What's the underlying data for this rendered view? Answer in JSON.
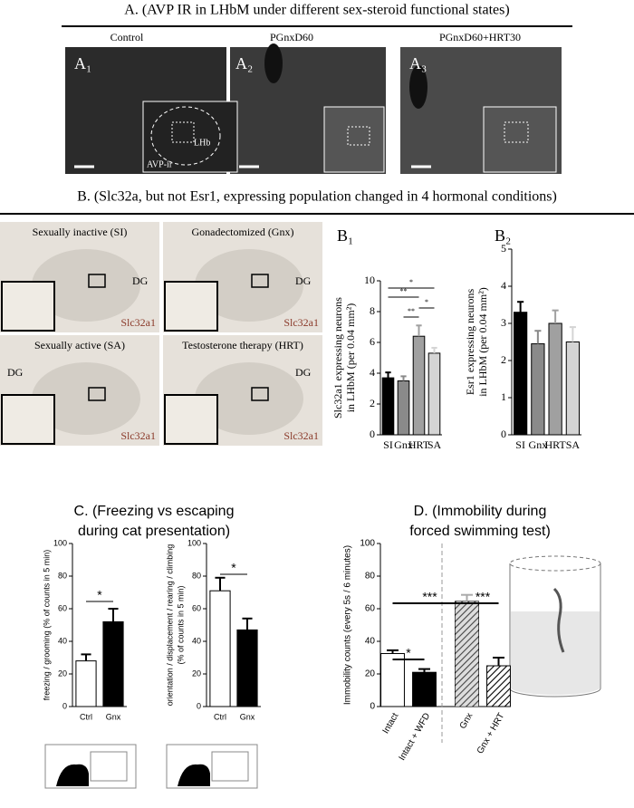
{
  "panel_a": {
    "heading": "A. (AVP IR in LHbM under different sex-steroid functional states)",
    "images": [
      {
        "caption": "Control",
        "label": "A₁"
      },
      {
        "caption": "PGnxD60",
        "label": "A₂"
      },
      {
        "caption": "PGnxD60+HRT30",
        "label": "A₃"
      }
    ],
    "inset_labels": [
      "AVP-ir",
      "LHb"
    ]
  },
  "panel_b": {
    "heading": "B. (Slc32a, but not Esr1, expressing population changed in 4 hormonal conditions)",
    "images": [
      {
        "label": "Sexually inactive (SI)"
      },
      {
        "label": "Gonadectomized (Gnx)"
      },
      {
        "label": "Sexually active (SA)"
      },
      {
        "label": "Testosterone therapy (HRT)"
      }
    ],
    "region": "DG",
    "gene": "Slc32a1"
  },
  "panel_c": {
    "heading": [
      "C. (Freezing vs escaping",
      "during cat presentation)"
    ]
  },
  "panel_d": {
    "heading": [
      "D. (Immobility during",
      "forced swimming test)"
    ]
  },
  "chart_data": [
    {
      "type": "bar",
      "label": "B₁",
      "ylabel": [
        "Slc32a1 expressing neurons",
        "in LHbM  (per 0.04 mm²)"
      ],
      "categories": [
        "SI",
        "Gnx",
        "HRT",
        "SA"
      ],
      "values": [
        3.7,
        3.5,
        6.4,
        5.3
      ],
      "errors": [
        0.35,
        0.3,
        0.7,
        0.35
      ],
      "colors": [
        "#000000",
        "#8a8a8a",
        "#a0a0a0",
        "#d4d4d4"
      ],
      "ylim": [
        0,
        10
      ],
      "yticks": [
        0,
        2,
        4,
        6,
        8,
        10
      ],
      "annotations": [
        "*",
        "**",
        "*",
        "**"
      ]
    },
    {
      "type": "bar",
      "label": "B₂",
      "ylabel": [
        "Esr1 expressing neurons",
        "in LHbM  (per 0.04 mm²)"
      ],
      "categories": [
        "SI",
        "Gnx",
        "HRT",
        "SA"
      ],
      "values": [
        3.3,
        2.45,
        3.0,
        2.5
      ],
      "errors": [
        0.28,
        0.35,
        0.35,
        0.4
      ],
      "colors": [
        "#000000",
        "#8a8a8a",
        "#a0a0a0",
        "#d4d4d4"
      ],
      "ylim": [
        0,
        5
      ],
      "yticks": [
        0,
        1,
        2,
        3,
        4,
        5
      ],
      "annotations": []
    },
    {
      "type": "bar",
      "ylabel": [
        "freezing / grooming (% of counts in 5 min)"
      ],
      "categories": [
        "Ctrl",
        "Gnx"
      ],
      "values": [
        28,
        52
      ],
      "errors": [
        4,
        8
      ],
      "colors": [
        "#ffffff",
        "#000000"
      ],
      "ylim": [
        0,
        100
      ],
      "yticks": [
        0,
        20,
        40,
        60,
        80,
        100
      ],
      "annotations": [
        "*"
      ]
    },
    {
      "type": "bar",
      "ylabel": [
        "orientation / displacement / rearing / climbing",
        "(% of counts in 5 min)"
      ],
      "categories": [
        "Ctrl",
        "Gnx"
      ],
      "values": [
        71,
        47
      ],
      "errors": [
        8,
        7
      ],
      "colors": [
        "#ffffff",
        "#000000"
      ],
      "ylim": [
        0,
        100
      ],
      "yticks": [
        0,
        20,
        40,
        60,
        80,
        100
      ],
      "annotations": [
        "*"
      ]
    },
    {
      "type": "bar",
      "ylabel": [
        "Immobility counts (every 5s / 6 minutes)"
      ],
      "categories": [
        "Intact",
        "Intact + WFD",
        "Gnx",
        "Gnx + HRT"
      ],
      "values": [
        32.5,
        21,
        64.5,
        25
      ],
      "errors": [
        2,
        2,
        4,
        5
      ],
      "colors": [
        "#ffffff",
        "#000000",
        "#aaaaaa",
        "#ffffff"
      ],
      "hatch": [
        false,
        false,
        true,
        true
      ],
      "ylim": [
        0,
        100
      ],
      "yticks": [
        0,
        20,
        40,
        60,
        80,
        100
      ],
      "annotations": [
        "*",
        "***",
        "***"
      ]
    }
  ]
}
